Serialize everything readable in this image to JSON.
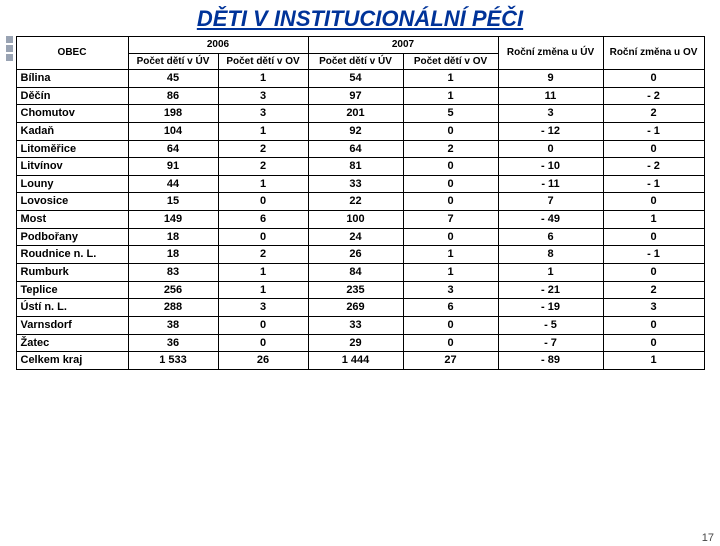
{
  "title": "DĚTI V INSTITUCIONÁLNÍ PÉČI",
  "page_number": "17",
  "table": {
    "header": {
      "obec": "OBEC",
      "year2006": "2006",
      "year2007": "2007",
      "uv2006": "Počet dětí v ÚV",
      "ov2006": "Počet dětí v OV",
      "uv2007": "Počet dětí v ÚV",
      "ov2007": "Počet dětí v OV",
      "deltaUV": "Roční změna u ÚV",
      "deltaOV": "Roční změna u OV"
    },
    "rows": [
      {
        "obec": "Bílina",
        "uv06": "45",
        "ov06": "1",
        "uv07": "54",
        "ov07": "1",
        "dUV": "9",
        "dOV": "0"
      },
      {
        "obec": "Děčín",
        "uv06": "86",
        "ov06": "3",
        "uv07": "97",
        "ov07": "1",
        "dUV": "11",
        "dOV": "- 2"
      },
      {
        "obec": "Chomutov",
        "uv06": "198",
        "ov06": "3",
        "uv07": "201",
        "ov07": "5",
        "dUV": "3",
        "dOV": "2"
      },
      {
        "obec": "Kadaň",
        "uv06": "104",
        "ov06": "1",
        "uv07": "92",
        "ov07": "0",
        "dUV": "- 12",
        "dOV": "- 1"
      },
      {
        "obec": "Litoměřice",
        "uv06": "64",
        "ov06": "2",
        "uv07": "64",
        "ov07": "2",
        "dUV": "0",
        "dOV": "0"
      },
      {
        "obec": "Litvínov",
        "uv06": "91",
        "ov06": "2",
        "uv07": "81",
        "ov07": "0",
        "dUV": "- 10",
        "dOV": "- 2"
      },
      {
        "obec": "Louny",
        "uv06": "44",
        "ov06": "1",
        "uv07": "33",
        "ov07": "0",
        "dUV": "- 11",
        "dOV": "- 1"
      },
      {
        "obec": "Lovosice",
        "uv06": "15",
        "ov06": "0",
        "uv07": "22",
        "ov07": "0",
        "dUV": "7",
        "dOV": "0"
      },
      {
        "obec": "Most",
        "uv06": "149",
        "ov06": "6",
        "uv07": "100",
        "ov07": "7",
        "dUV": "- 49",
        "dOV": "1"
      },
      {
        "obec": "Podbořany",
        "uv06": "18",
        "ov06": "0",
        "uv07": "24",
        "ov07": "0",
        "dUV": "6",
        "dOV": "0"
      },
      {
        "obec": "Roudnice n. L.",
        "uv06": "18",
        "ov06": "2",
        "uv07": "26",
        "ov07": "1",
        "dUV": "8",
        "dOV": "- 1"
      },
      {
        "obec": "Rumburk",
        "uv06": "83",
        "ov06": "1",
        "uv07": "84",
        "ov07": "1",
        "dUV": "1",
        "dOV": "0"
      },
      {
        "obec": "Teplice",
        "uv06": "256",
        "ov06": "1",
        "uv07": "235",
        "ov07": "3",
        "dUV": "- 21",
        "dOV": "2"
      },
      {
        "obec": "Ústí n. L.",
        "uv06": "288",
        "ov06": "3",
        "uv07": "269",
        "ov07": "6",
        "dUV": "- 19",
        "dOV": "3"
      },
      {
        "obec": "Varnsdorf",
        "uv06": "38",
        "ov06": "0",
        "uv07": "33",
        "ov07": "0",
        "dUV": "- 5",
        "dOV": "0"
      },
      {
        "obec": "Žatec",
        "uv06": "36",
        "ov06": "0",
        "uv07": "29",
        "ov07": "0",
        "dUV": "- 7",
        "dOV": "0"
      }
    ],
    "total": {
      "obec": "Celkem kraj",
      "uv06": "1 533",
      "ov06": "26",
      "uv07": "1 444",
      "ov07": "27",
      "dUV": "- 89",
      "dOV": "1"
    }
  }
}
